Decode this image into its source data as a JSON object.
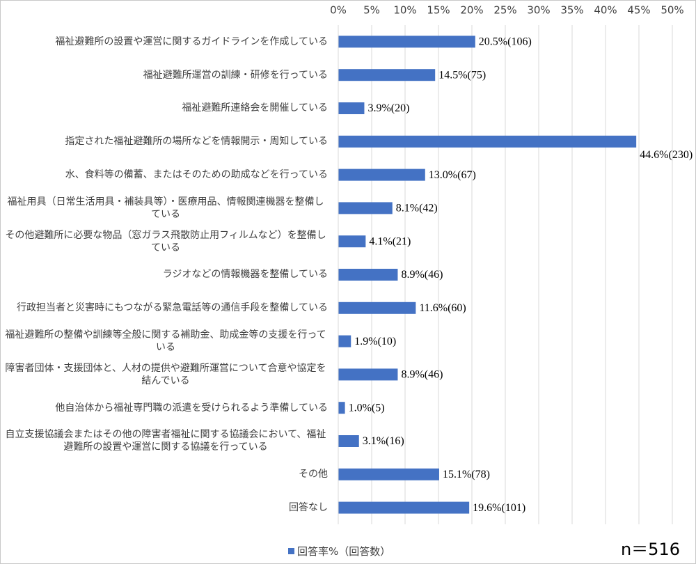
{
  "chart_data": {
    "type": "bar",
    "orientation": "horizontal",
    "categories": [
      "福祉避難所の設置や運営に関するガイドラインを作成している",
      "福祉避難所運営の訓練・研修を行っている",
      "福祉避難所連絡会を開催している",
      "指定された福祉避難所の場所などを情報開示・周知している",
      "水、食料等の備蓄、またはそのための助成などを行っている",
      "福祉用具（日常生活用具・補装具等）・医療用品、情報関連機器を整備している",
      "その他避難所に必要な物品（窓ガラス飛散防止用フィルムなど）を整備している",
      "ラジオなどの情報機器を整備している",
      "行政担当者と災害時にもつながる緊急電話等の通信手段を整備している",
      "福祉避難所の整備や訓練等全般に関する補助金、助成金等の支援を行っている",
      "障害者団体・支援団体と、人材の提供や避難所運営について合意や協定を結んでいる",
      "他自治体から福祉専門職の派遣を受けられるよう準備している",
      "自立支援協議会またはその他の障害者福祉に関する協議会において、福祉避難所の設置や運営に関する協議を行っている",
      "その他",
      "回答なし"
    ],
    "series": [
      {
        "name": "回答率%（回答数）",
        "color": "#4472c4",
        "values": [
          20.5,
          14.5,
          3.9,
          44.6,
          13.0,
          8.1,
          4.1,
          8.9,
          11.6,
          1.9,
          8.9,
          1.0,
          3.1,
          15.1,
          19.6
        ],
        "value_labels": [
          "20.5%(106)",
          "14.5%(75)",
          "3.9%(20)",
          "44.6%(230)",
          "13.0%(67)",
          "8.1%(42)",
          "4.1%(21)",
          "8.9%(46)",
          "11.6%(60)",
          "1.9%(10)",
          "8.9%(46)",
          "1.0%(5)",
          "3.1%(16)",
          "15.1%(78)",
          "19.6%(101)"
        ]
      }
    ],
    "xlim": [
      0,
      50
    ],
    "xticks": [
      {
        "value": 0,
        "label": "0%"
      },
      {
        "value": 5,
        "label": "5%"
      },
      {
        "value": 10,
        "label": "10%"
      },
      {
        "value": 15,
        "label": "15%"
      },
      {
        "value": 20,
        "label": "20%"
      },
      {
        "value": 25,
        "label": "25%"
      },
      {
        "value": 30,
        "label": "30%"
      },
      {
        "value": 35,
        "label": "35%"
      },
      {
        "value": 40,
        "label": "40%"
      },
      {
        "value": 45,
        "label": "45%"
      },
      {
        "value": 50,
        "label": "50%"
      }
    ],
    "grid": true,
    "legend": "bottom",
    "annotation": "n＝516"
  }
}
